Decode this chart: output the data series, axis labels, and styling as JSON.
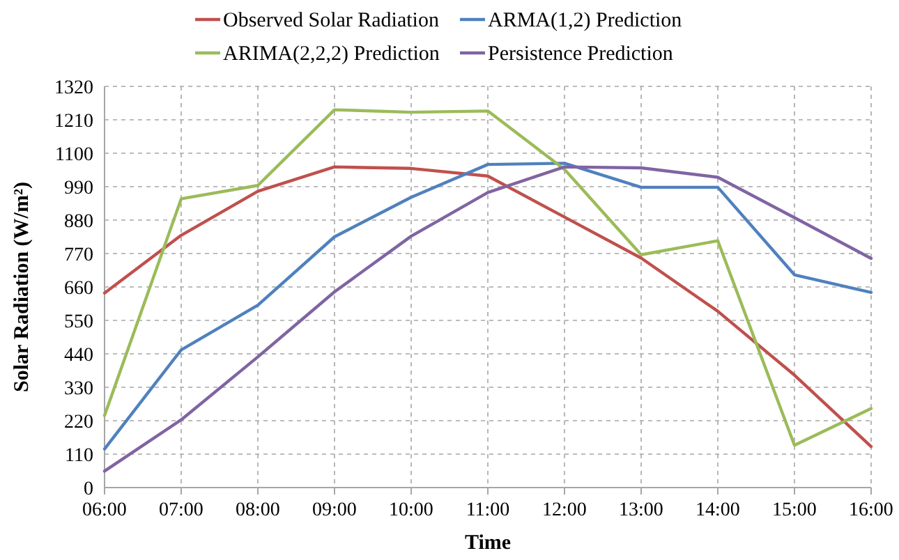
{
  "chart_data": {
    "type": "line",
    "xlabel": "Time",
    "ylabel": "Solar Radiation (W/m²)",
    "x": [
      6,
      7,
      8,
      9,
      10,
      11,
      12,
      13,
      14,
      15,
      16
    ],
    "xlim": [
      6,
      16
    ],
    "xticks": [
      {
        "value": 6,
        "label": "06:00"
      },
      {
        "value": 7,
        "label": "07:00"
      },
      {
        "value": 8,
        "label": "08:00"
      },
      {
        "value": 9,
        "label": "09:00"
      },
      {
        "value": 10,
        "label": "10:00"
      },
      {
        "value": 11,
        "label": "11:00"
      },
      {
        "value": 12,
        "label": "12:00"
      },
      {
        "value": 13,
        "label": "13:00"
      },
      {
        "value": 14,
        "label": "14:00"
      },
      {
        "value": 15,
        "label": "15:00"
      },
      {
        "value": 16,
        "label": "16:00"
      }
    ],
    "ylim": [
      0,
      1320
    ],
    "yticks": [
      0,
      110,
      220,
      330,
      440,
      550,
      660,
      770,
      880,
      990,
      1100,
      1210,
      1320
    ],
    "grid": true,
    "legend": "top",
    "marker": "none",
    "line_style": "solid",
    "series": [
      {
        "name": "Observed Solar Radiation",
        "color": "#c0504d",
        "values": [
          640,
          830,
          975,
          1055,
          1050,
          1025,
          890,
          755,
          580,
          370,
          135
        ]
      },
      {
        "name": "ARMA(1,2) Prediction",
        "color": "#4f81bd",
        "values": [
          127,
          453,
          600,
          825,
          955,
          1063,
          1067,
          988,
          988,
          700,
          642
        ]
      },
      {
        "name": "ARIMA(2,2,2) Prediction",
        "color": "#9bbb59",
        "values": [
          237,
          950,
          994,
          1243,
          1235,
          1239,
          1047,
          766,
          812,
          139,
          260
        ]
      },
      {
        "name": "Persistence Prediction",
        "color": "#8064a2",
        "values": [
          54,
          223,
          430,
          644,
          827,
          971,
          1055,
          1052,
          1021,
          888,
          754
        ]
      }
    ]
  }
}
